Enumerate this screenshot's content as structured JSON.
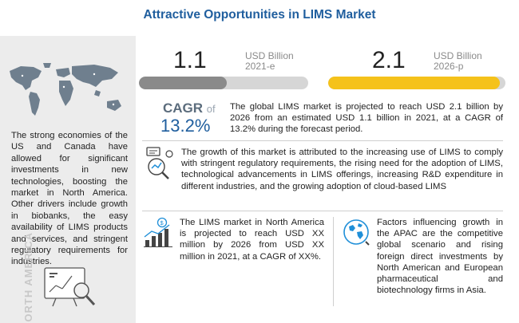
{
  "title": "Attractive Opportunities in LIMS Market",
  "left_panel": {
    "text": "The strong economies of the US and Canada have allowed for significant investments in new technologies, boosting the market in North America. Other drivers include growth in biobanks, the easy availability of LIMS products and services, and stringent regulatory requirements for industries.",
    "region": "NORTH AMERICA"
  },
  "metrics": [
    {
      "value": "1.1",
      "unit": "USD Billion",
      "year": "2021-e",
      "fill": 0.52,
      "color": "#8a8a8a"
    },
    {
      "value": "2.1",
      "unit": "USD Billion",
      "year": "2026-p",
      "fill": 0.97,
      "color": "#f5c21a"
    }
  ],
  "cagr": {
    "label": "CAGR",
    "of": "of",
    "value": "13.2%"
  },
  "summary": "The global LIMS market is projected to reach USD 2.1 billion by 2026 from an estimated USD 1.1 billion in 2021, at a CAGR of 13.2% during the forecast period.",
  "growth": "The growth of this market is attributed to the increasing use of LIMS to comply with stringent regulatory requirements, the rising need for the adoption of LIMS, technological advancements in LIMS offerings, increasing R&D expenditure in different industries, and the growing adoption of cloud-based LIMS",
  "north_america": "The LIMS market in North America is projected to reach USD XX million by 2026 from USD XX million in 2021, at a CAGR of XX%.",
  "apac": "Factors influencing growth in the APAC are the competitive global scenario and rising foreign direct investments by North American and European pharmaceutical and biotechnology firms in Asia.",
  "colors": {
    "title": "#1f5e9e",
    "accent": "#f5c21a",
    "grey_bar": "#8a8a8a"
  }
}
